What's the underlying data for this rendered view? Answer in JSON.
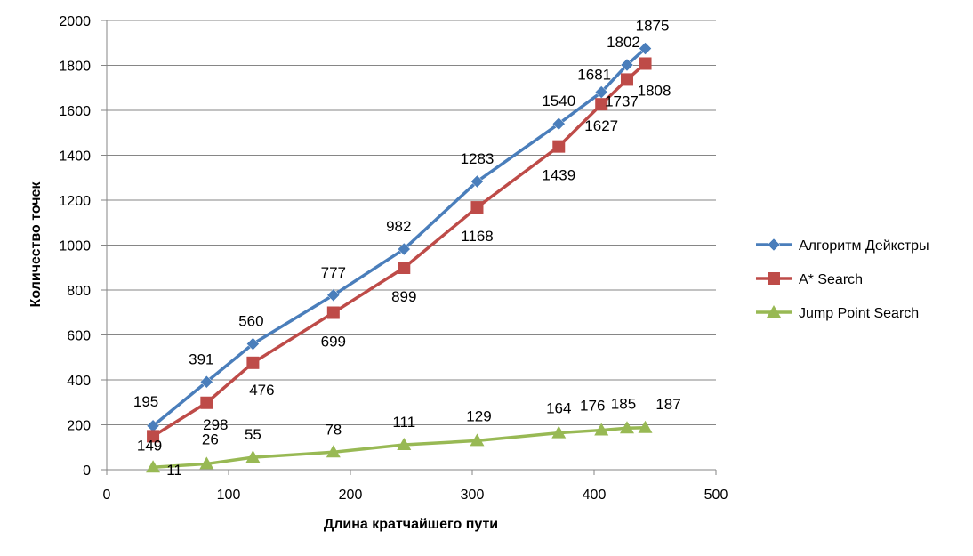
{
  "chart_data": {
    "type": "line",
    "title": "",
    "xlabel": "Длина кратчайшего пути",
    "ylabel": "Количество точек",
    "xlim": [
      0,
      500
    ],
    "ylim": [
      0,
      2000
    ],
    "xticks": [
      "0",
      "100",
      "200",
      "300",
      "400",
      "500"
    ],
    "yticks": [
      "0",
      "200",
      "400",
      "600",
      "800",
      "1000",
      "1200",
      "1400",
      "1600",
      "1800",
      "2000"
    ],
    "grid": "horizontal",
    "legend_position": "right",
    "series": [
      {
        "name": "Алгоритм Дейкстры",
        "color": "#4a7ebb",
        "marker": "diamond",
        "x": [
          38,
          82,
          120,
          186,
          244,
          304,
          371,
          406,
          427,
          442
        ],
        "y": [
          195,
          391,
          560,
          777,
          982,
          1283,
          1540,
          1681,
          1802,
          1875
        ],
        "labels": [
          "195",
          "391",
          "560",
          "777",
          "982",
          "1283",
          "1540",
          "1681",
          "1802",
          "1875"
        ]
      },
      {
        "name": "A* Search",
        "color": "#be4b48",
        "marker": "square",
        "x": [
          38,
          82,
          120,
          186,
          244,
          304,
          371,
          406,
          427,
          442
        ],
        "y": [
          149,
          298,
          476,
          699,
          899,
          1168,
          1439,
          1627,
          1737,
          1808
        ],
        "labels": [
          "149",
          "298",
          "476",
          "699",
          "899",
          "1168",
          "1439",
          "1627",
          "1737",
          "1808"
        ]
      },
      {
        "name": "Jump Point Search",
        "color": "#98b954",
        "marker": "triangle",
        "x": [
          38,
          82,
          120,
          186,
          244,
          304,
          371,
          406,
          427,
          442
        ],
        "y": [
          11,
          26,
          55,
          78,
          111,
          129,
          164,
          176,
          185,
          187
        ],
        "labels": [
          "11",
          "26",
          "55",
          "78",
          "111",
          "129",
          "164",
          "176",
          "185",
          "187"
        ]
      }
    ]
  }
}
